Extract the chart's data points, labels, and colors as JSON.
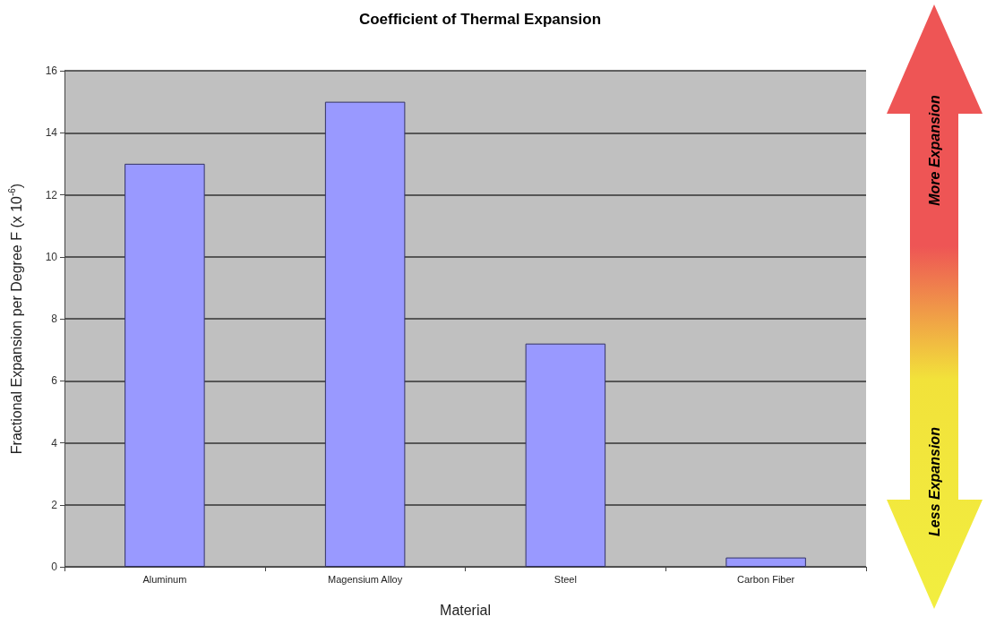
{
  "chart_data": {
    "type": "bar",
    "title": "Coefficient of Thermal Expansion",
    "xlabel": "Material",
    "ylabel": "Fractional Expansion per Degree F (x 10$^{-6}$)",
    "categories": [
      "Aluminum",
      "Magensium Alloy",
      "Steel",
      "Carbon Fiber"
    ],
    "values": [
      13,
      15,
      7.2,
      0.3
    ],
    "color": "#9999ff",
    "ylim": [
      0,
      16
    ],
    "yticks": [
      0,
      2,
      4,
      6,
      8,
      10,
      12,
      14,
      16
    ],
    "grid": "y",
    "annotations": [
      "More Expansion",
      "Less Expansion"
    ]
  }
}
